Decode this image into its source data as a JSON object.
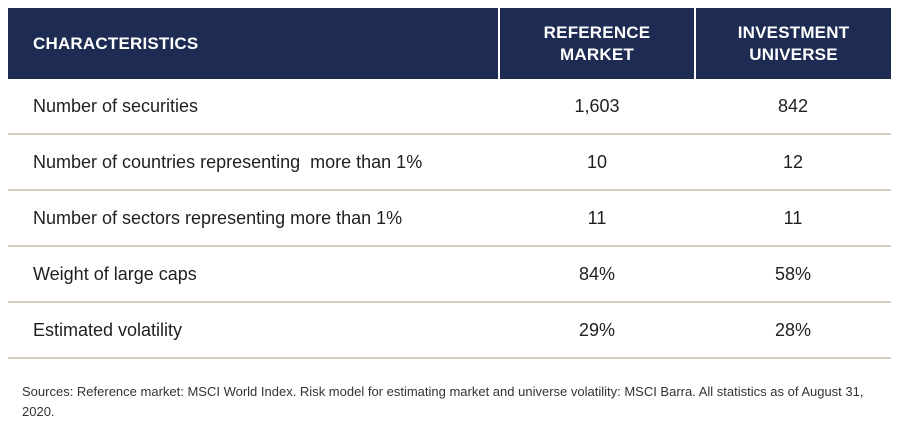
{
  "table": {
    "headers": {
      "characteristics": "CHARACTERISTICS",
      "reference_line1": "REFERENCE",
      "reference_line2": "MARKET",
      "investment_line1": "INVESTMENT",
      "investment_line2": "UNIVERSE"
    },
    "rows": [
      {
        "label": "Number of securities",
        "reference": "1,603",
        "universe": "842"
      },
      {
        "label": "Number of countries representing  more than 1%",
        "reference": "10",
        "universe": "12"
      },
      {
        "label": "Number of sectors representing more than 1%",
        "reference": "11",
        "universe": "11"
      },
      {
        "label": "Weight of large caps",
        "reference": "84%",
        "universe": "58%"
      },
      {
        "label": "Estimated volatility",
        "reference": "29%",
        "universe": "28%"
      }
    ],
    "colors": {
      "header_bg": "#1e2b52",
      "row_divider": "#d7cfc2"
    }
  },
  "footnote": "Sources: Reference market: MSCI World Index. Risk model for estimating market and universe volatility: MSCI Barra. All statistics as of August 31, 2020."
}
